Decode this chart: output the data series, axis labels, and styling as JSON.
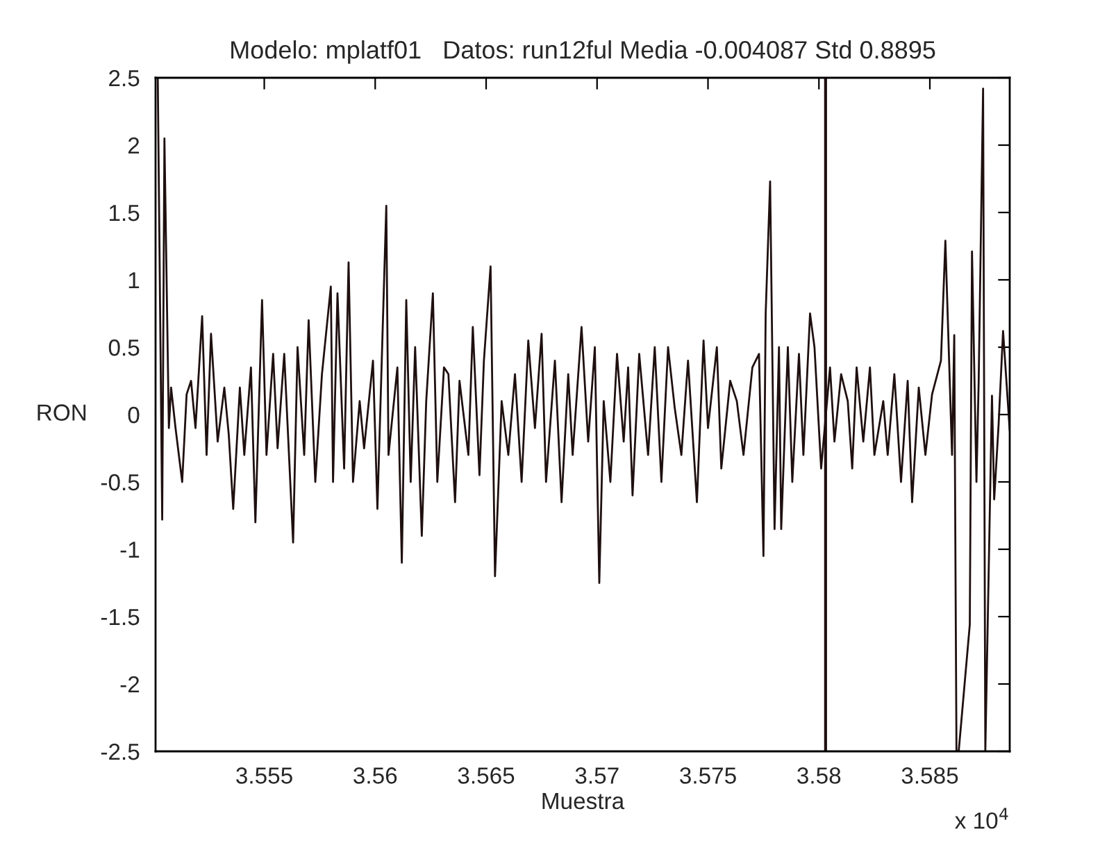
{
  "chart_data": {
    "type": "line",
    "title": "Modelo: mplatf01   Datos: run12ful Media -0.004087 Std 0.8895",
    "xlabel": "Muestra",
    "ylabel": "RON",
    "x": [
      3.5502,
      3.5504,
      3.5505,
      3.5507,
      3.5508,
      3.551,
      3.5513,
      3.5515,
      3.5517,
      3.5519,
      3.5522,
      3.5524,
      3.5526,
      3.5529,
      3.5532,
      3.5534,
      3.5536,
      3.5539,
      3.5541,
      3.5544,
      3.5546,
      3.5549,
      3.5551,
      3.5554,
      3.5556,
      3.5559,
      3.5563,
      3.5565,
      3.5568,
      3.557,
      3.5573,
      3.5576,
      3.558,
      3.5581,
      3.5583,
      3.5586,
      3.5588,
      3.559,
      3.5593,
      3.5595,
      3.5599,
      3.5601,
      3.5605,
      3.5606,
      3.561,
      3.5612,
      3.5614,
      3.5616,
      3.5618,
      3.5621,
      3.5623,
      3.5626,
      3.5628,
      3.5631,
      3.5633,
      3.5636,
      3.5638,
      3.5642,
      3.5644,
      3.5647,
      3.5649,
      3.5652,
      3.5654,
      3.5657,
      3.566,
      3.5663,
      3.5666,
      3.5669,
      3.5672,
      3.5675,
      3.5677,
      3.5681,
      3.5684,
      3.5687,
      3.5689,
      3.5693,
      3.5696,
      3.5699,
      3.5701,
      3.5703,
      3.5706,
      3.5709,
      3.5712,
      3.5714,
      3.5716,
      3.5719,
      3.5723,
      3.5726,
      3.5729,
      3.5732,
      3.5735,
      3.5738,
      3.5741,
      3.5745,
      3.5748,
      3.575,
      3.5754,
      3.5756,
      3.576,
      3.5763,
      3.5766,
      3.577,
      3.5773,
      3.5775,
      3.5776,
      3.5778,
      3.578,
      3.5782,
      3.5783,
      3.5786,
      3.5788,
      3.5791,
      3.5793,
      3.5796,
      3.5798,
      3.5801,
      3.5805,
      3.5807,
      3.581,
      3.5813,
      3.5815,
      3.5817,
      3.582,
      3.5823,
      3.5825,
      3.5829,
      3.5831,
      3.5834,
      3.5837,
      3.584,
      3.5842,
      3.5845,
      3.5848,
      3.5851,
      3.5855,
      3.5857,
      3.586,
      3.5861,
      3.5862,
      3.5863,
      3.5868,
      3.5869,
      3.5871,
      3.5872,
      3.5874,
      3.5875,
      3.5878,
      3.5879,
      3.5881,
      3.5883,
      3.5886
    ],
    "series": [
      {
        "color": "#1f0f0f",
        "values": [
          2.5,
          -0.78,
          2.05,
          -0.1,
          0.2,
          -0.1,
          -0.5,
          0.15,
          0.25,
          -0.1,
          0.73,
          -0.3,
          0.6,
          -0.2,
          0.2,
          -0.15,
          -0.7,
          0.2,
          -0.3,
          0.35,
          -0.8,
          0.85,
          -0.3,
          0.45,
          -0.25,
          0.45,
          -0.95,
          0.5,
          -0.3,
          0.7,
          -0.5,
          0.3,
          0.95,
          -0.5,
          0.9,
          -0.4,
          1.13,
          -0.5,
          0.1,
          -0.25,
          0.4,
          -0.7,
          1.55,
          -0.3,
          0.35,
          -1.1,
          0.85,
          -0.5,
          0.5,
          -0.9,
          0.1,
          0.9,
          -0.5,
          0.35,
          0.3,
          -0.65,
          0.25,
          -0.3,
          0.65,
          -0.45,
          0.4,
          1.1,
          -1.2,
          0.1,
          -0.3,
          0.3,
          -0.5,
          0.55,
          -0.1,
          0.6,
          -0.5,
          0.4,
          -0.65,
          0.3,
          -0.3,
          0.65,
          -0.2,
          0.5,
          -1.25,
          0.1,
          -0.5,
          0.45,
          -0.2,
          0.35,
          -0.6,
          0.45,
          -0.3,
          0.5,
          -0.5,
          0.5,
          0.05,
          -0.3,
          0.4,
          -0.65,
          0.55,
          -0.1,
          0.5,
          -0.4,
          0.25,
          0.1,
          -0.3,
          0.35,
          0.45,
          -1.05,
          0.75,
          1.73,
          -0.85,
          0.5,
          -0.85,
          0.5,
          -0.5,
          0.45,
          -0.3,
          0.75,
          0.5,
          -0.4,
          0.35,
          -0.2,
          0.3,
          0.1,
          -0.4,
          0.35,
          -0.2,
          0.35,
          -0.3,
          0.1,
          -0.3,
          0.3,
          -0.5,
          0.25,
          -0.65,
          0.2,
          -0.3,
          0.15,
          0.4,
          1.29,
          -0.3,
          0.59,
          -2.5,
          -2.5,
          -1.56,
          1.21,
          -0.5,
          0.24,
          2.42,
          -2.5,
          0.14,
          -0.63,
          -0.07,
          0.62,
          -0.12
        ]
      }
    ],
    "xlim": [
      3.5501,
      3.5886
    ],
    "xticks": [
      3.555,
      3.56,
      3.565,
      3.57,
      3.575,
      3.58,
      3.585
    ],
    "ylim": [
      -2.5,
      2.5
    ],
    "yticks": [
      -2.5,
      -2,
      -1.5,
      -1,
      -0.5,
      0,
      0.5,
      1,
      1.5,
      2,
      2.5
    ],
    "ref_lines": [
      {
        "axis": "x",
        "value": 3.5803,
        "color": "#1f0f0f"
      }
    ],
    "annotations": [
      "x 10$^{4}$"
    ],
    "grid": false,
    "legend": false,
    "marker": "none",
    "line_style": "solid"
  }
}
